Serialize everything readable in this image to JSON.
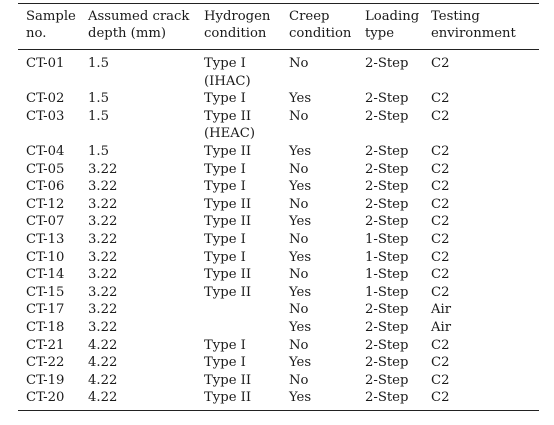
{
  "headers": [
    {
      "line1": "Sample",
      "line2": "no."
    },
    {
      "line1": "Assumed crack",
      "line2": "depth (mm)"
    },
    {
      "line1": "Hydrogen",
      "line2": "condition"
    },
    {
      "line1": "Creep",
      "line2": "condition"
    },
    {
      "line1": "Loading",
      "line2": "type"
    },
    {
      "line1": "Testing",
      "line2": "environment"
    }
  ],
  "rows": [
    {
      "sample": "CT-01",
      "depth": "1.5",
      "hydrogen": "Type I",
      "hydrogen_note": "(IHAC)",
      "creep": "No",
      "loading": "2-Step",
      "env": "C2"
    },
    {
      "sample": "CT-02",
      "depth": "1.5",
      "hydrogen": "Type I",
      "hydrogen_note": "",
      "creep": "Yes",
      "loading": "2-Step",
      "env": "C2"
    },
    {
      "sample": "CT-03",
      "depth": "1.5",
      "hydrogen": "Type II",
      "hydrogen_note": "(HEAC)",
      "creep": "No",
      "loading": "2-Step",
      "env": "C2"
    },
    {
      "sample": "CT-04",
      "depth": "1.5",
      "hydrogen": "Type II",
      "hydrogen_note": "",
      "creep": "Yes",
      "loading": "2-Step",
      "env": "C2"
    },
    {
      "sample": "CT-05",
      "depth": "3.22",
      "hydrogen": "Type I",
      "hydrogen_note": "",
      "creep": "No",
      "loading": "2-Step",
      "env": "C2"
    },
    {
      "sample": "CT-06",
      "depth": "3.22",
      "hydrogen": "Type I",
      "hydrogen_note": "",
      "creep": "Yes",
      "loading": "2-Step",
      "env": "C2"
    },
    {
      "sample": "CT-12",
      "depth": "3.22",
      "hydrogen": "Type II",
      "hydrogen_note": "",
      "creep": "No",
      "loading": "2-Step",
      "env": "C2"
    },
    {
      "sample": "CT-07",
      "depth": "3.22",
      "hydrogen": "Type II",
      "hydrogen_note": "",
      "creep": "Yes",
      "loading": "2-Step",
      "env": "C2"
    },
    {
      "sample": "CT-13",
      "depth": "3.22",
      "hydrogen": "Type I",
      "hydrogen_note": "",
      "creep": "No",
      "loading": "1-Step",
      "env": "C2"
    },
    {
      "sample": "CT-10",
      "depth": "3.22",
      "hydrogen": "Type I",
      "hydrogen_note": "",
      "creep": "Yes",
      "loading": "1-Step",
      "env": "C2"
    },
    {
      "sample": "CT-14",
      "depth": "3.22",
      "hydrogen": "Type II",
      "hydrogen_note": "",
      "creep": "No",
      "loading": "1-Step",
      "env": "C2"
    },
    {
      "sample": "CT-15",
      "depth": "3.22",
      "hydrogen": "Type II",
      "hydrogen_note": "",
      "creep": "Yes",
      "loading": "1-Step",
      "env": "C2"
    },
    {
      "sample": "CT-17",
      "depth": "3.22",
      "hydrogen": "",
      "hydrogen_note": "",
      "creep": "No",
      "loading": "2-Step",
      "env": "Air"
    },
    {
      "sample": "CT-18",
      "depth": "3.22",
      "hydrogen": "",
      "hydrogen_note": "",
      "creep": "Yes",
      "loading": "2-Step",
      "env": "Air"
    },
    {
      "sample": "CT-21",
      "depth": "4.22",
      "hydrogen": "Type I",
      "hydrogen_note": "",
      "creep": "No",
      "loading": "2-Step",
      "env": "C2"
    },
    {
      "sample": "CT-22",
      "depth": "4.22",
      "hydrogen": "Type I",
      "hydrogen_note": "",
      "creep": "Yes",
      "loading": "2-Step",
      "env": "C2"
    },
    {
      "sample": "CT-19",
      "depth": "4.22",
      "hydrogen": "Type II",
      "hydrogen_note": "",
      "creep": "No",
      "loading": "2-Step",
      "env": "C2"
    },
    {
      "sample": "CT-20",
      "depth": "4.22",
      "hydrogen": "Type II",
      "hydrogen_note": "",
      "creep": "Yes",
      "loading": "2-Step",
      "env": "C2"
    }
  ]
}
